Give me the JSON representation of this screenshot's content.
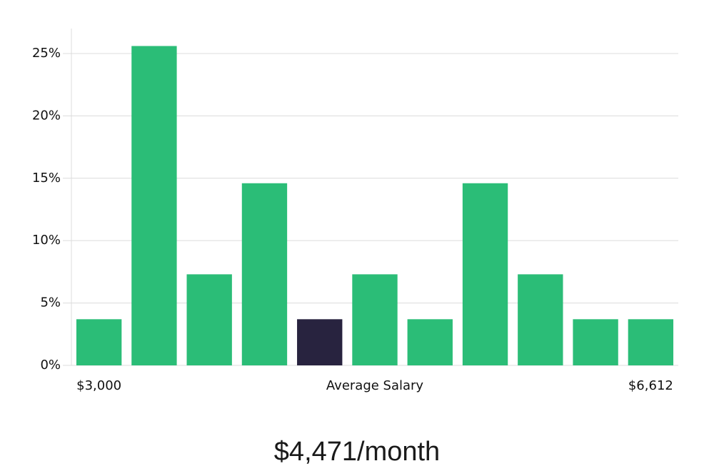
{
  "chart_data": {
    "type": "bar",
    "categories": [
      "$3,000",
      null,
      null,
      null,
      null,
      null,
      null,
      null,
      null,
      null,
      "$6,612"
    ],
    "values": [
      3.7,
      25.6,
      7.3,
      14.6,
      3.7,
      7.3,
      3.7,
      14.6,
      7.3,
      3.7,
      3.7
    ],
    "colors": [
      "#2bbd77",
      "#2bbd77",
      "#2bbd77",
      "#2bbd77",
      "#28233f",
      "#2bbd77",
      "#2bbd77",
      "#2bbd77",
      "#2bbd77",
      "#2bbd77",
      "#2bbd77"
    ],
    "x_label": "Average Salary",
    "annotation": "$4,471/month",
    "ylim": [
      0,
      27
    ],
    "yticks": [
      {
        "value": 0,
        "label": "0%"
      },
      {
        "value": 5,
        "label": "5%"
      },
      {
        "value": 10,
        "label": "10%"
      },
      {
        "value": 15,
        "label": "15%"
      },
      {
        "value": 20,
        "label": "20%"
      },
      {
        "value": 25,
        "label": "25%"
      }
    ],
    "grid": true
  }
}
